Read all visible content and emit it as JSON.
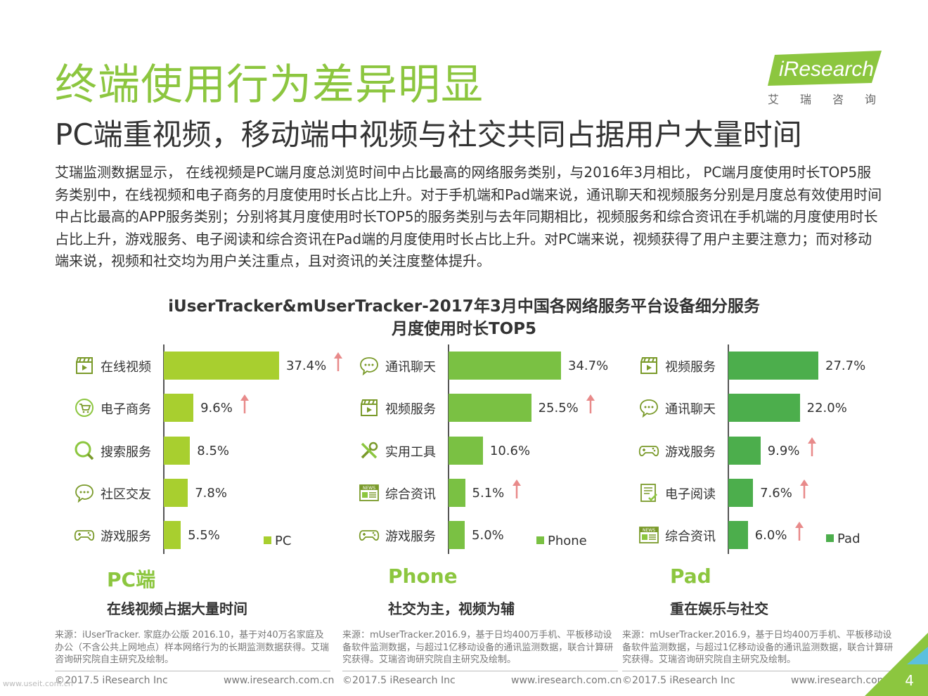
{
  "page": {
    "title": "终端使用行为差异明显",
    "subtitle": "PC端重视频，移动端中视频与社交共同占据用户大量时间",
    "paragraph": "艾瑞监测数据显示， 在线视频是PC端月度总浏览时间中占比最高的网络服务类别，与2016年3月相比， PC端月度使用时长TOP5服务类别中，在线视频和电子商务的月度使用时长占比上升。对于手机端和Pad端来说，通讯聊天和视频服务分别是月度总有效使用时间中占比最高的APP服务类别；分别将其月度使用时长TOP5的服务类别与去年同期相比，视频服务和综合资讯在手机端的月度使用时长占比上升，游戏服务、电子阅读和综合资讯在Pad端的月度使用时长占比上升。对PC端来说，视频获得了用户主要注意力；而对移动端来说，视频和社交均为用户关注重点，且对资讯的关注度整体提升。",
    "page_number": "4",
    "watermark": "www.useit.com.cn"
  },
  "logo": {
    "text": "iResearch",
    "cn": "艾瑞咨询"
  },
  "colors": {
    "accent": "#8cc63f",
    "pc": "#a8cf2f",
    "phone": "#7ac143",
    "pad": "#4cae4c",
    "arrow": "#e88a8a"
  },
  "chart_data": {
    "type": "bar",
    "title_line1": "iUserTracker&mUserTracker-2017年3月中国各网络服务平台设备细分服务",
    "title_line2": "月度使用时长TOP5",
    "panels": [
      {
        "name": "PC",
        "legend": "PC",
        "headline": "PC端",
        "caption": "在线视频占据大量时间",
        "source": "来源：iUserTracker. 家庭办公版 2016.10，基于对40万名家庭及办公（不含公共上网地点）样本网络行为的长期监测数据获得。艾瑞咨询研究院自主研究及绘制。",
        "footer_left": "©2017.5 iResearch Inc",
        "footer_right": "www.iresearch.com.cn",
        "categories": [
          "在线视频",
          "电子商务",
          "搜索服务",
          "社区交友",
          "游戏服务"
        ],
        "icons": [
          "video-icon",
          "cart-icon",
          "search-icon",
          "chat-icon",
          "gamepad-icon"
        ],
        "values": [
          37.4,
          9.6,
          8.5,
          7.8,
          5.5
        ],
        "labels": [
          "37.4%",
          "9.6%",
          "8.5%",
          "7.8%",
          "5.5%"
        ],
        "rising": [
          true,
          true,
          false,
          false,
          false
        ]
      },
      {
        "name": "Phone",
        "legend": "Phone",
        "headline": "Phone",
        "caption": "社交为主，视频为辅",
        "source": "来源：mUserTracker.2016.9，基于日均400万手机、平板移动设备软件监测数据，与超过1亿移动设备的通讯监测数据，联合计算研究获得。艾瑞咨询研究院自主研究及绘制。",
        "footer_left": "©2017.5 iResearch Inc",
        "footer_right": "www.iresearch.com.cn",
        "categories": [
          "通讯聊天",
          "视频服务",
          "实用工具",
          "综合资讯",
          "游戏服务"
        ],
        "icons": [
          "chat-icon",
          "video-icon",
          "tools-icon",
          "news-icon",
          "gamepad-icon"
        ],
        "values": [
          34.7,
          25.5,
          10.6,
          5.1,
          5.0
        ],
        "labels": [
          "34.7%",
          "25.5%",
          "10.6%",
          "5.1%",
          "5.0%"
        ],
        "rising": [
          false,
          true,
          false,
          true,
          false
        ]
      },
      {
        "name": "Pad",
        "legend": "Pad",
        "headline": "Pad",
        "caption": "重在娱乐与社交",
        "source": "来源：mUserTracker.2016.9，基于日均400万手机、平板移动设备软件监测数据，与超过1亿移动设备的通讯监测数据，联合计算研究获得。艾瑞咨询研究院自主研究及绘制。",
        "footer_left": "©2017.5 iResearch Inc",
        "footer_right": "www.iresearch.com.cn",
        "categories": [
          "视频服务",
          "通讯聊天",
          "游戏服务",
          "电子阅读",
          "综合资讯"
        ],
        "icons": [
          "video-icon",
          "chat-icon",
          "gamepad-icon",
          "ebook-icon",
          "news-icon"
        ],
        "values": [
          27.7,
          22.0,
          9.9,
          7.6,
          6.0
        ],
        "labels": [
          "27.7%",
          "22.0%",
          "9.9%",
          "7.6%",
          "6.0%"
        ],
        "rising": [
          false,
          false,
          true,
          true,
          true
        ]
      }
    ]
  }
}
